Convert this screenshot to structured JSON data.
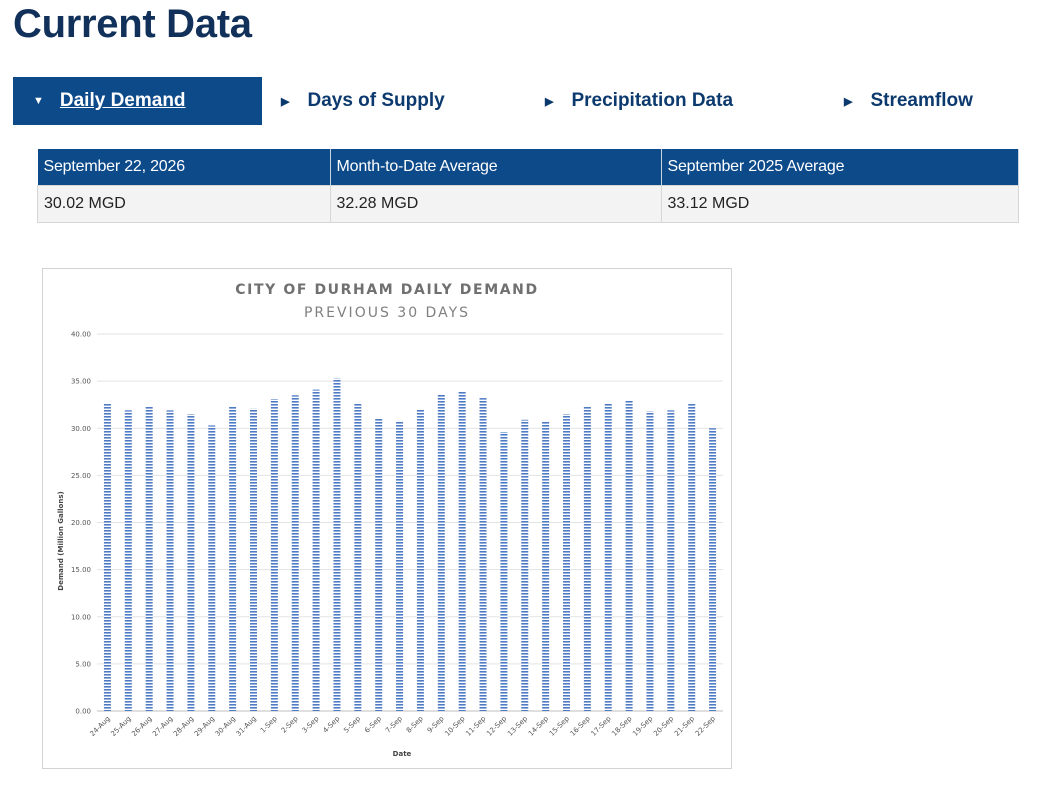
{
  "page": {
    "title": "Current Data"
  },
  "tabs": [
    {
      "label": "Daily Demand",
      "active": true
    },
    {
      "label": "Days of Supply",
      "active": false
    },
    {
      "label": "Precipitation Data",
      "active": false
    },
    {
      "label": "Streamflow",
      "active": false
    }
  ],
  "summary": {
    "headers": [
      "September 22, 2026",
      "Month-to-Date Average",
      "September 2025 Average"
    ],
    "values": [
      "30.02 MGD",
      "32.28 MGD",
      "33.12 MGD"
    ]
  },
  "colors": {
    "accent": "#0d4a8a",
    "title": "#12315a",
    "bar": "#4f7bc4"
  },
  "chart_data": {
    "type": "bar",
    "title": "CITY OF DURHAM DAILY DEMAND",
    "subtitle": "PREVIOUS 30 DAYS",
    "xlabel": "Date",
    "ylabel": "Demand (Million Gallons)",
    "ylim": [
      0,
      40
    ],
    "yticks": [
      "0.00",
      "5.00",
      "10.00",
      "15.00",
      "20.00",
      "25.00",
      "30.00",
      "35.00",
      "40.00"
    ],
    "grid": true,
    "categories": [
      "24-Aug",
      "25-Aug",
      "26-Aug",
      "27-Aug",
      "28-Aug",
      "29-Aug",
      "30-Aug",
      "31-Aug",
      "1-Sep",
      "2-Sep",
      "3-Sep",
      "4-Sep",
      "5-Sep",
      "6-Sep",
      "7-Sep",
      "8-Sep",
      "9-Sep",
      "10-Sep",
      "11-Sep",
      "12-Sep",
      "13-Sep",
      "14-Sep",
      "15-Sep",
      "16-Sep",
      "17-Sep",
      "18-Sep",
      "19-Sep",
      "20-Sep",
      "21-Sep",
      "22-Sep"
    ],
    "values": [
      32.6,
      31.9,
      32.3,
      31.9,
      31.5,
      30.3,
      32.3,
      32.1,
      33.1,
      33.5,
      34.1,
      35.3,
      32.7,
      31.1,
      30.8,
      32.0,
      33.6,
      33.9,
      33.2,
      29.6,
      30.9,
      30.7,
      31.5,
      32.3,
      32.6,
      32.9,
      31.8,
      31.9,
      32.7,
      30.0
    ]
  }
}
